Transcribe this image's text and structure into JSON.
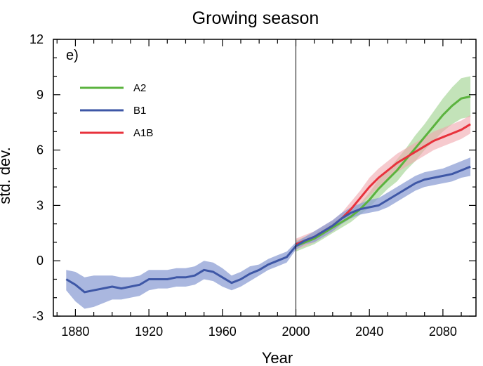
{
  "chart_data": {
    "type": "line",
    "title": "Growing season",
    "panel_label": "e)",
    "xlabel": "Year",
    "ylabel": "std. dev.",
    "xlim": [
      1868,
      2098
    ],
    "ylim": [
      -3,
      12
    ],
    "xticks": [
      1880,
      1920,
      1960,
      2000,
      2040,
      2080
    ],
    "yticks": [
      -3,
      0,
      3,
      6,
      9,
      12
    ],
    "reference_line_x": 2000,
    "grid": false,
    "legend_position": "top-left",
    "series": [
      {
        "name": "A2",
        "color": "#5bb33e",
        "band_color": "#9bd08a",
        "x": [
          2000,
          2005,
          2010,
          2015,
          2020,
          2025,
          2030,
          2035,
          2040,
          2045,
          2050,
          2055,
          2060,
          2065,
          2070,
          2075,
          2080,
          2085,
          2090,
          2095
        ],
        "values": [
          0.8,
          1.0,
          1.2,
          1.5,
          1.8,
          2.1,
          2.4,
          2.8,
          3.3,
          3.9,
          4.4,
          4.9,
          5.5,
          6.1,
          6.7,
          7.3,
          7.9,
          8.4,
          8.8,
          8.9
        ],
        "lower": [
          0.5,
          0.7,
          0.9,
          1.2,
          1.5,
          1.8,
          2.1,
          2.5,
          2.9,
          3.4,
          3.9,
          4.3,
          4.9,
          5.4,
          6.0,
          6.5,
          7.0,
          7.4,
          7.7,
          7.8
        ],
        "upper": [
          1.1,
          1.3,
          1.5,
          1.8,
          2.1,
          2.4,
          2.7,
          3.1,
          3.7,
          4.4,
          4.9,
          5.5,
          6.1,
          6.8,
          7.4,
          8.1,
          8.8,
          9.4,
          9.9,
          10.0
        ]
      },
      {
        "name": "B1",
        "color": "#3e57a6",
        "band_color": "#8d9fd4",
        "x": [
          1875,
          1880,
          1885,
          1890,
          1895,
          1900,
          1905,
          1910,
          1915,
          1920,
          1925,
          1930,
          1935,
          1940,
          1945,
          1950,
          1955,
          1960,
          1965,
          1970,
          1975,
          1980,
          1985,
          1990,
          1995,
          2000,
          2005,
          2010,
          2015,
          2020,
          2025,
          2030,
          2035,
          2040,
          2045,
          2050,
          2055,
          2060,
          2065,
          2070,
          2075,
          2080,
          2085,
          2090,
          2095
        ],
        "values": [
          -1.0,
          -1.3,
          -1.7,
          -1.6,
          -1.5,
          -1.4,
          -1.5,
          -1.4,
          -1.3,
          -1.0,
          -1.0,
          -1.0,
          -0.9,
          -0.9,
          -0.8,
          -0.5,
          -0.6,
          -0.9,
          -1.2,
          -1.0,
          -0.7,
          -0.5,
          -0.2,
          0.0,
          0.2,
          0.8,
          1.1,
          1.3,
          1.6,
          1.9,
          2.3,
          2.6,
          2.8,
          2.9,
          3.0,
          3.3,
          3.6,
          3.9,
          4.2,
          4.4,
          4.5,
          4.6,
          4.7,
          4.9,
          5.1
        ],
        "lower": [
          -1.6,
          -2.2,
          -2.6,
          -2.5,
          -2.3,
          -2.1,
          -2.1,
          -2.0,
          -1.9,
          -1.6,
          -1.5,
          -1.5,
          -1.4,
          -1.4,
          -1.3,
          -1.0,
          -1.1,
          -1.4,
          -1.6,
          -1.4,
          -1.1,
          -0.8,
          -0.5,
          -0.3,
          -0.1,
          0.6,
          0.9,
          1.0,
          1.3,
          1.6,
          2.0,
          2.3,
          2.5,
          2.6,
          2.7,
          2.9,
          3.2,
          3.5,
          3.8,
          4.0,
          4.1,
          4.2,
          4.3,
          4.5,
          4.6
        ],
        "upper": [
          -0.5,
          -0.6,
          -0.9,
          -0.8,
          -0.8,
          -0.8,
          -0.9,
          -0.9,
          -0.8,
          -0.5,
          -0.5,
          -0.5,
          -0.4,
          -0.4,
          -0.3,
          0.0,
          -0.1,
          -0.4,
          -0.8,
          -0.6,
          -0.3,
          -0.2,
          0.1,
          0.3,
          0.5,
          1.0,
          1.3,
          1.6,
          1.9,
          2.2,
          2.6,
          2.9,
          3.1,
          3.3,
          3.4,
          3.7,
          4.0,
          4.3,
          4.6,
          4.8,
          4.9,
          5.0,
          5.2,
          5.4,
          5.6
        ]
      },
      {
        "name": "A1B",
        "color": "#e8323c",
        "band_color": "#f0a6ad",
        "x": [
          2000,
          2005,
          2010,
          2015,
          2020,
          2025,
          2030,
          2035,
          2040,
          2045,
          2050,
          2055,
          2060,
          2065,
          2070,
          2075,
          2080,
          2085,
          2090,
          2095
        ],
        "values": [
          0.9,
          1.1,
          1.3,
          1.6,
          1.9,
          2.3,
          2.8,
          3.4,
          4.0,
          4.5,
          4.9,
          5.3,
          5.6,
          5.9,
          6.2,
          6.5,
          6.7,
          6.9,
          7.1,
          7.4
        ],
        "lower": [
          0.6,
          0.8,
          1.0,
          1.3,
          1.6,
          2.0,
          2.4,
          3.0,
          3.5,
          4.0,
          4.4,
          4.8,
          5.1,
          5.4,
          5.7,
          6.0,
          6.2,
          6.4,
          6.6,
          6.9
        ],
        "upper": [
          1.2,
          1.4,
          1.6,
          1.9,
          2.2,
          2.6,
          3.2,
          3.8,
          4.5,
          5.0,
          5.4,
          5.8,
          6.1,
          6.4,
          6.7,
          7.0,
          7.2,
          7.4,
          7.6,
          7.9
        ]
      }
    ]
  }
}
